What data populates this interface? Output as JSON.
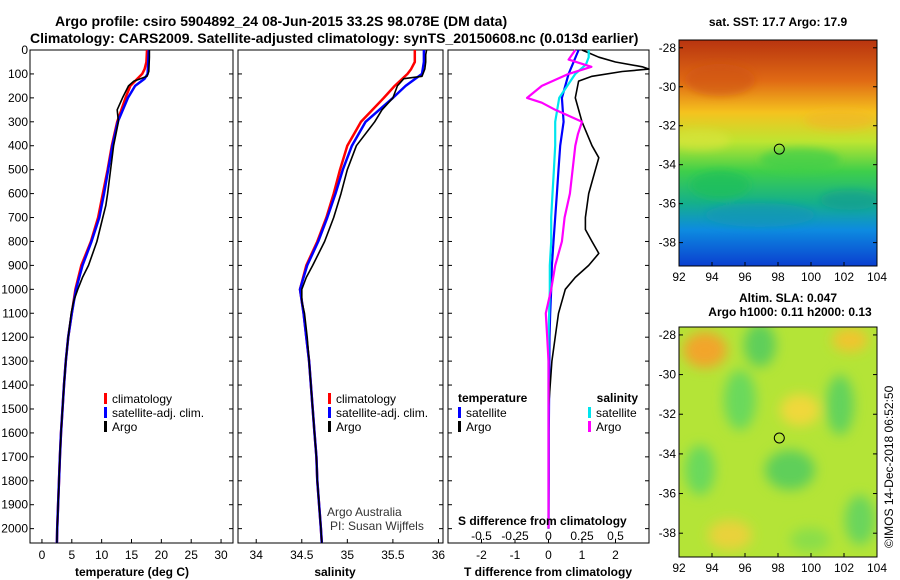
{
  "header": {
    "line1": "Argo profile: csiro 5904892_24 08-Jun-2015 33.2S 98.078E (DM data)",
    "line2": "Climatology: CARS2009. Satellite-adjusted climatology: synTS_20150608.nc (0.013d earlier)"
  },
  "colors": {
    "climatology": "#ff0000",
    "satellite": "#0000ff",
    "argo": "#000000",
    "sat_salinity": "#00e5ee",
    "argo_salinity": "#ff00ff"
  },
  "credit": {
    "line1": "Argo Australia",
    "line2": "PI: Susan Wijffels"
  },
  "timestamp": "©IMOS 14-Dec-2018 06:52:50",
  "chart_data": [
    {
      "type": "line",
      "id": "temperature",
      "xlabel": "temperature (deg C)",
      "xlim": [
        -2,
        32
      ],
      "ylim": [
        0,
        2060
      ],
      "xticks": [
        0,
        5,
        10,
        15,
        20,
        25,
        30
      ],
      "yticks": [
        0,
        100,
        200,
        300,
        400,
        500,
        600,
        700,
        800,
        900,
        1000,
        1100,
        1200,
        1300,
        1400,
        1500,
        1600,
        1700,
        1800,
        1900,
        2000
      ],
      "legend": [
        "climatology",
        "satellite-adj. clim.",
        "Argo"
      ],
      "series": [
        {
          "name": "climatology",
          "depth": [
            0,
            50,
            80,
            100,
            150,
            200,
            300,
            400,
            500,
            600,
            700,
            800,
            900,
            1000,
            1100,
            1200,
            1300,
            1400,
            1500,
            1600,
            1700,
            1800,
            1900,
            2000,
            2060
          ],
          "values": [
            17.6,
            17.5,
            17.2,
            16.8,
            14.8,
            14.0,
            12.6,
            11.7,
            11.0,
            10.2,
            9.4,
            8.2,
            6.6,
            5.6,
            5.0,
            4.4,
            4.0,
            3.7,
            3.45,
            3.2,
            3.0,
            2.85,
            2.7,
            2.55,
            2.5
          ]
        },
        {
          "name": "satellite-adj. clim.",
          "depth": [
            0,
            50,
            100,
            120,
            150,
            200,
            300,
            400,
            500,
            600,
            700,
            800,
            900,
            1000,
            1100,
            1200,
            1300,
            1400,
            1500,
            1600,
            1700,
            1800,
            1900,
            2000,
            2060
          ],
          "values": [
            17.9,
            17.8,
            17.7,
            17.2,
            15.6,
            14.4,
            12.7,
            11.8,
            11.1,
            10.4,
            9.6,
            8.3,
            6.8,
            5.7,
            5.0,
            4.4,
            4.0,
            3.7,
            3.45,
            3.2,
            3.0,
            2.85,
            2.7,
            2.55,
            2.5
          ]
        },
        {
          "name": "Argo",
          "depth": [
            0,
            30,
            60,
            90,
            110,
            120,
            130,
            150,
            200,
            250,
            300,
            400,
            500,
            600,
            650,
            700,
            800,
            900,
            950,
            1000,
            1050,
            1100,
            1200,
            1300,
            1400,
            1500,
            1600,
            1700,
            1800,
            1900,
            2000,
            2060
          ],
          "values": [
            18.0,
            18.0,
            17.95,
            17.9,
            17.6,
            16.5,
            15.4,
            14.5,
            13.5,
            12.6,
            12.8,
            12.0,
            11.5,
            11.0,
            10.7,
            10.2,
            9.2,
            7.8,
            6.8,
            6.0,
            5.3,
            4.9,
            4.4,
            4.0,
            3.7,
            3.45,
            3.2,
            3.0,
            2.85,
            2.7,
            2.55,
            2.5
          ]
        }
      ]
    },
    {
      "type": "line",
      "id": "salinity",
      "xlabel": "salinity",
      "xlim": [
        33.8,
        36.05
      ],
      "ylim": [
        0,
        2060
      ],
      "xticks": [
        34,
        34.5,
        35,
        35.5,
        36
      ],
      "tick_labels": [
        "34",
        "34.5",
        "35",
        "35.5",
        "36"
      ],
      "legend": [
        "climatology",
        "satellite-adj. clim.",
        "Argo"
      ],
      "series": [
        {
          "name": "climatology",
          "depth": [
            0,
            50,
            80,
            100,
            150,
            200,
            300,
            400,
            500,
            600,
            700,
            800,
            900,
            1000,
            1100,
            1200,
            1300,
            1400,
            1500,
            1600,
            1700,
            1800,
            1900,
            2000,
            2060
          ],
          "values": [
            35.74,
            35.74,
            35.7,
            35.66,
            35.52,
            35.4,
            35.15,
            35.0,
            34.92,
            34.85,
            34.77,
            34.67,
            34.55,
            34.48,
            34.52,
            34.55,
            34.58,
            34.6,
            34.62,
            34.64,
            34.66,
            34.67,
            34.69,
            34.71,
            34.72
          ]
        },
        {
          "name": "satellite-adj. clim.",
          "depth": [
            0,
            50,
            100,
            150,
            200,
            300,
            400,
            500,
            600,
            700,
            800,
            900,
            1000,
            1100,
            1200,
            1300,
            1400,
            1500,
            1600,
            1700,
            1800,
            1900,
            2000,
            2060
          ],
          "values": [
            35.84,
            35.84,
            35.82,
            35.64,
            35.5,
            35.2,
            35.05,
            34.95,
            34.87,
            34.78,
            34.68,
            34.56,
            34.48,
            34.52,
            34.55,
            34.58,
            34.6,
            34.62,
            34.64,
            34.66,
            34.67,
            34.69,
            34.71,
            34.72
          ]
        },
        {
          "name": "Argo",
          "depth": [
            0,
            20,
            50,
            80,
            110,
            120,
            150,
            200,
            250,
            300,
            400,
            500,
            600,
            700,
            800,
            900,
            950,
            1000,
            1050,
            1100,
            1200,
            1300,
            1400,
            1500,
            1600,
            1700,
            1800,
            1900,
            2000,
            2060
          ],
          "values": [
            35.87,
            35.86,
            35.86,
            35.85,
            35.82,
            35.62,
            35.55,
            35.5,
            35.38,
            35.3,
            35.1,
            35.0,
            34.93,
            34.85,
            34.75,
            34.62,
            34.55,
            34.5,
            34.5,
            34.53,
            34.56,
            34.58,
            34.6,
            34.62,
            34.64,
            34.66,
            34.67,
            34.69,
            34.71,
            34.72
          ]
        }
      ]
    },
    {
      "type": "line",
      "id": "difference",
      "xlabel": "T difference from climatology",
      "xlabel_top": "S difference from climatology",
      "xlim": [
        -3,
        3
      ],
      "ylim": [
        0,
        2060
      ],
      "xticks": [
        -2,
        -1,
        0,
        1,
        2
      ],
      "tick_labels": [
        "-2",
        "-1",
        "0",
        "1",
        "2"
      ],
      "xticks_top_labels": [
        "-0.5",
        "-0.25",
        "0",
        "0.25",
        "0.5"
      ],
      "legend_left_title": "temperature",
      "legend_right_title": "salinity",
      "legend": [
        "satellite",
        "Argo",
        "satellite",
        "Argo"
      ],
      "series": [
        {
          "name": "T satellite",
          "depth": [
            0,
            100,
            200,
            300,
            400,
            500,
            600,
            700,
            800,
            900,
            1000,
            1100,
            1200,
            1400,
            1600,
            1800,
            2000
          ],
          "values": [
            0.9,
            0.6,
            0.4,
            0.45,
            0.35,
            0.3,
            0.25,
            0.2,
            0.15,
            0.1,
            0.08,
            0.05,
            0.03,
            0.02,
            0.01,
            0.01,
            0.0
          ]
        },
        {
          "name": "T Argo",
          "depth": [
            0,
            30,
            50,
            70,
            80,
            90,
            110,
            130,
            200,
            300,
            400,
            450,
            500,
            600,
            700,
            750,
            800,
            850,
            900,
            950,
            1000,
            1100,
            1200,
            1300,
            1400,
            1500,
            1600,
            1800,
            2000
          ],
          "values": [
            1.0,
            1.5,
            2.0,
            2.8,
            3.0,
            2.2,
            1.3,
            0.9,
            0.8,
            1.0,
            1.3,
            1.5,
            1.4,
            1.2,
            1.1,
            1.1,
            1.3,
            1.5,
            1.2,
            0.8,
            0.5,
            0.3,
            0.2,
            0.1,
            0.05,
            0.0,
            0.0,
            0.0,
            0.0
          ]
        },
        {
          "name": "S satellite",
          "depth": [
            0,
            30,
            60,
            100,
            200,
            300,
            400,
            500,
            600,
            700,
            800,
            900,
            1000,
            1200,
            1400,
            1600,
            1800,
            2000
          ],
          "values": [
            0.3,
            0.3,
            0.28,
            0.2,
            0.08,
            0.05,
            0.05,
            0.04,
            0.03,
            0.02,
            0.02,
            0.01,
            0.01,
            0.0,
            0.0,
            0.0,
            0.0,
            0.0
          ]
        },
        {
          "name": "S Argo",
          "depth": [
            0,
            40,
            70,
            100,
            150,
            200,
            220,
            250,
            300,
            350,
            400,
            500,
            600,
            700,
            800,
            900,
            1000,
            1100,
            1200,
            1300,
            1400,
            1500,
            1600,
            2000
          ],
          "values": [
            0.2,
            0.15,
            0.32,
            0.15,
            -0.05,
            -0.16,
            -0.05,
            0.05,
            0.25,
            0.22,
            0.2,
            0.18,
            0.16,
            0.12,
            0.1,
            0.05,
            0.02,
            -0.02,
            -0.01,
            0.0,
            0.0,
            0.0,
            0.0,
            0.0
          ]
        }
      ]
    },
    {
      "type": "heatmap",
      "id": "sst-map",
      "title": "sat. SST: 17.7 Argo: 17.9",
      "xticks": [
        "92",
        "94",
        "96",
        "98",
        "100",
        "102",
        "104"
      ],
      "yticks": [
        "-28",
        "-30",
        "-32",
        "-34",
        "-36",
        "-38"
      ],
      "xlim": [
        92,
        104
      ],
      "ylim": [
        -39.2,
        -27.6
      ],
      "marker": {
        "lon": 98.078,
        "lat": -33.2
      }
    },
    {
      "type": "heatmap",
      "id": "sla-map",
      "title": "Altim. SLA: 0.047",
      "subtitle": "Argo h1000: 0.11 h2000: 0.13",
      "xticks": [
        "92",
        "94",
        "96",
        "98",
        "100",
        "102",
        "104"
      ],
      "yticks": [
        "-28",
        "-30",
        "-32",
        "-34",
        "-36",
        "-38"
      ],
      "xlim": [
        92,
        104
      ],
      "ylim": [
        -39.2,
        -27.6
      ],
      "marker": {
        "lon": 98.078,
        "lat": -33.2
      }
    }
  ]
}
